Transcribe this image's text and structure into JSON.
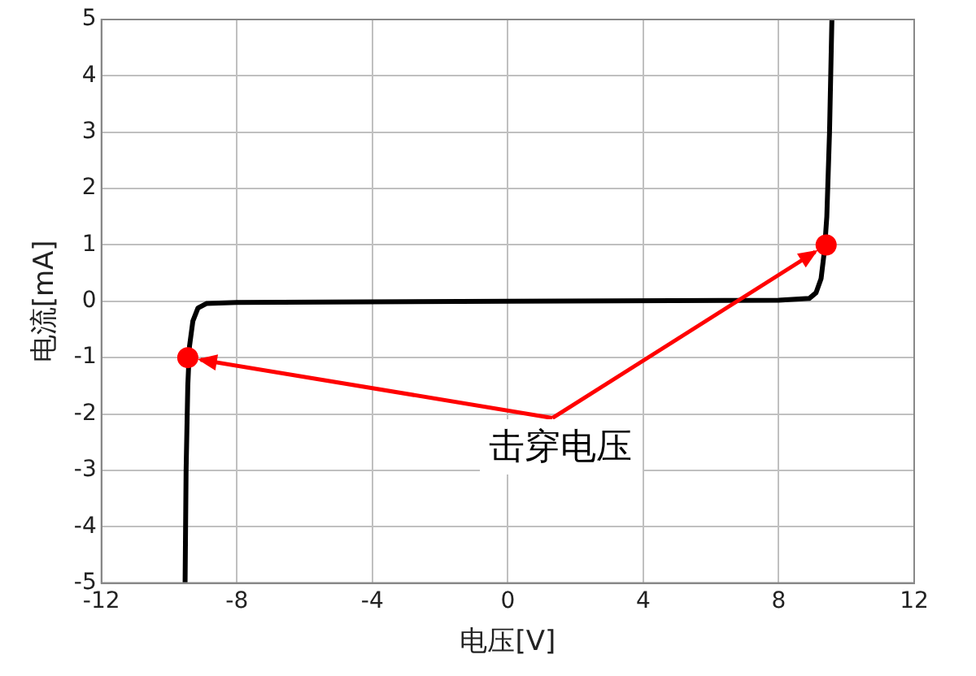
{
  "chart_data": {
    "type": "line",
    "xlabel": "电压[V]",
    "ylabel": "电流[mA]",
    "xlim": [
      -12,
      12
    ],
    "xticks": [
      -12,
      -8,
      -4,
      0,
      4,
      8,
      12
    ],
    "ylim": [
      -5,
      5
    ],
    "yticks": [
      -5,
      -4,
      -3,
      -2,
      -1,
      0,
      1,
      2,
      3,
      4,
      5
    ],
    "grid": true,
    "legend": false,
    "series": [
      {
        "color": "#000000",
        "marker": "none",
        "x": [
          -9.53,
          -9.5,
          -9.45,
          -9.4,
          -9.3,
          -9.15,
          -8.9,
          -8,
          0,
          8,
          8.9,
          9.1,
          9.25,
          9.35,
          9.42,
          9.5,
          9.57
        ],
        "values": [
          -5,
          -3,
          -1.5,
          -0.8,
          -0.35,
          -0.12,
          -0.04,
          -0.02,
          0,
          0.02,
          0.05,
          0.15,
          0.4,
          0.9,
          1.5,
          3,
          5
        ]
      },
      {
        "type": "scatter",
        "color": "#ff0000",
        "marker": "circle",
        "x": [
          -9.45,
          9.4
        ],
        "values": [
          -1,
          1
        ]
      }
    ],
    "annotations": [
      {
        "text": "击穿电压",
        "x": 9.4,
        "y": 1
      }
    ]
  }
}
